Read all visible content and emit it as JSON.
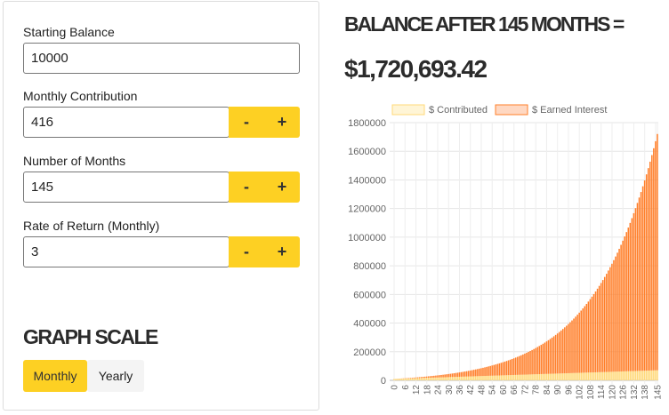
{
  "form": {
    "starting_balance": {
      "label": "Starting Balance",
      "value": "10000"
    },
    "monthly_contribution": {
      "label": "Monthly Contribution",
      "value": "416"
    },
    "number_of_months": {
      "label": "Number of Months",
      "value": "145"
    },
    "rate_of_return": {
      "label": "Rate of Return (Monthly)",
      "value": "3"
    },
    "minus_label": "-",
    "plus_label": "+"
  },
  "graph_scale": {
    "title": "GRAPH SCALE",
    "options": [
      "Monthly",
      "Yearly"
    ],
    "selected": "Monthly"
  },
  "result": {
    "line1": "BALANCE AFTER 145 MONTHS =",
    "line2": "$1,720,693.42"
  },
  "colors": {
    "accent": "#fdd023",
    "contributed": "#ffd97a",
    "interest": "#ff7f2a"
  },
  "chart_data": {
    "type": "bar",
    "stacked": true,
    "legend": [
      "$ Contributed",
      "$ Earned Interest"
    ],
    "legend_position": "top",
    "x_tick_labels": [
      "0",
      "6",
      "12",
      "18",
      "24",
      "30",
      "36",
      "42",
      "48",
      "54",
      "60",
      "66",
      "72",
      "78",
      "84",
      "90",
      "96",
      "102",
      "108",
      "114",
      "120",
      "126",
      "132",
      "138",
      "145"
    ],
    "y_tick_labels": [
      "0",
      "200000",
      "400000",
      "600000",
      "800000",
      "1000000",
      "1200000",
      "1400000",
      "1600000",
      "1800000"
    ],
    "ylim": [
      0,
      1800000
    ],
    "grid": true,
    "months": 145,
    "starting_balance": 10000,
    "monthly_contribution": 416,
    "monthly_rate_percent": 3,
    "final_contributed": 70320,
    "final_balance": 1720693.42
  }
}
